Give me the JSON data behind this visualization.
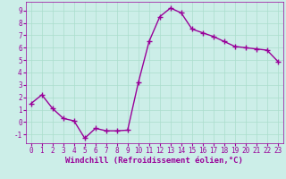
{
  "x": [
    0,
    1,
    2,
    3,
    4,
    5,
    6,
    7,
    8,
    9,
    10,
    11,
    12,
    13,
    14,
    15,
    16,
    17,
    18,
    19,
    20,
    21,
    22,
    23
  ],
  "y": [
    1.5,
    2.2,
    1.1,
    0.3,
    0.1,
    -1.3,
    -0.5,
    -0.7,
    -0.7,
    -0.65,
    3.2,
    6.5,
    8.5,
    9.2,
    8.8,
    7.5,
    7.2,
    6.9,
    6.5,
    6.1,
    6.0,
    5.9,
    5.8,
    4.9
  ],
  "line_color": "#990099",
  "marker": "+",
  "marker_size": 4,
  "xlabel": "Windchill (Refroidissement éolien,°C)",
  "xlim": [
    -0.5,
    23.5
  ],
  "ylim": [
    -1.7,
    9.7
  ],
  "yticks": [
    -1,
    0,
    1,
    2,
    3,
    4,
    5,
    6,
    7,
    8,
    9
  ],
  "xticks": [
    0,
    1,
    2,
    3,
    4,
    5,
    6,
    7,
    8,
    9,
    10,
    11,
    12,
    13,
    14,
    15,
    16,
    17,
    18,
    19,
    20,
    21,
    22,
    23
  ],
  "bg_color": "#cceee8",
  "grid_color": "#aaddcc",
  "line_width": 1.0,
  "xlabel_fontsize": 6.5,
  "tick_fontsize": 5.5,
  "marker_edge_width": 1.0
}
